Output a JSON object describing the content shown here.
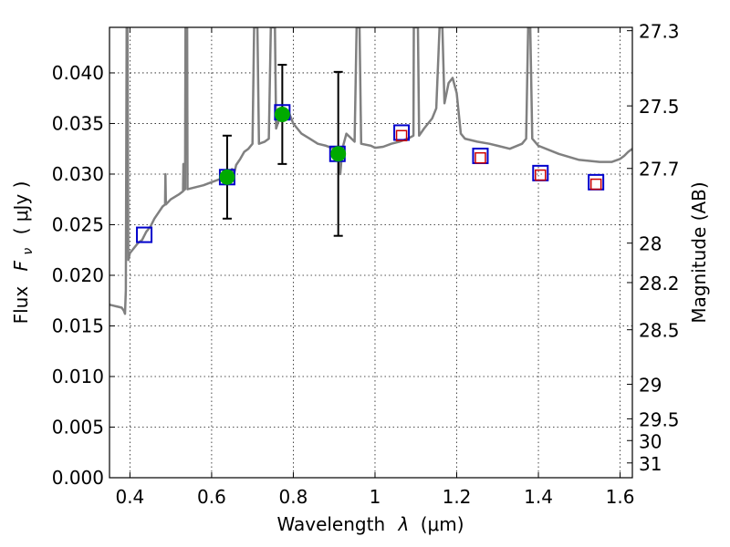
{
  "chart_data": {
    "type": "scatter",
    "xlabel": "Wavelength",
    "xlabel_symbol": "λ",
    "xlabel_unit": "(μm)",
    "ylabel_left": "Flux",
    "ylabel_left_symbol": "F",
    "ylabel_left_subscript": "ν",
    "ylabel_left_unit": "( μJy )",
    "ylabel_right": "Magnitude (AB)",
    "xlim": [
      0.35,
      1.63
    ],
    "ylim": [
      0.0,
      0.0445
    ],
    "x_ticks": [
      0.4,
      0.6,
      0.8,
      1.0,
      1.2,
      1.4,
      1.6
    ],
    "x_tick_labels": [
      "0.4",
      "0.6",
      "0.8",
      "1",
      "1.2",
      "1.4",
      "1.6"
    ],
    "y_ticks": [
      0.0,
      0.005,
      0.01,
      0.015,
      0.02,
      0.025,
      0.03,
      0.035,
      0.04
    ],
    "y_tick_labels": [
      "0.000",
      "0.005",
      "0.010",
      "0.015",
      "0.020",
      "0.025",
      "0.030",
      "0.035",
      "0.040"
    ],
    "right_ticks": [
      {
        "label": "27.3",
        "flux": 0.04417
      },
      {
        "label": "27.5",
        "flux": 0.03674
      },
      {
        "label": "27.7",
        "flux": 0.03056
      },
      {
        "label": "28",
        "flux": 0.02318
      },
      {
        "label": "28.2",
        "flux": 0.01928
      },
      {
        "label": "28.5",
        "flux": 0.01462
      },
      {
        "label": "29",
        "flux": 0.00923
      },
      {
        "label": "29.5",
        "flux": 0.00582
      },
      {
        "label": "30",
        "flux": 0.00367
      },
      {
        "label": "31",
        "flux": 0.00146
      }
    ],
    "grid": true,
    "series": [
      {
        "name": "model_sed",
        "color": "#808080",
        "points": [
          [
            0.35,
            0.0171
          ],
          [
            0.36,
            0.017
          ],
          [
            0.37,
            0.0169
          ],
          [
            0.38,
            0.0168
          ],
          [
            0.385,
            0.0165
          ],
          [
            0.388,
            0.0162
          ],
          [
            0.39,
            0.0185
          ],
          [
            0.392,
            0.0445
          ],
          [
            0.394,
            0.0445
          ],
          [
            0.396,
            0.0215
          ],
          [
            0.4,
            0.0222
          ],
          [
            0.41,
            0.0227
          ],
          [
            0.42,
            0.0232
          ],
          [
            0.43,
            0.0235
          ],
          [
            0.44,
            0.0243
          ],
          [
            0.45,
            0.0248
          ],
          [
            0.46,
            0.0256
          ],
          [
            0.47,
            0.0262
          ],
          [
            0.48,
            0.0268
          ],
          [
            0.486,
            0.027
          ],
          [
            0.487,
            0.03
          ],
          [
            0.488,
            0.027
          ],
          [
            0.5,
            0.0275
          ],
          [
            0.52,
            0.028
          ],
          [
            0.53,
            0.0283
          ],
          [
            0.531,
            0.031
          ],
          [
            0.532,
            0.0284
          ],
          [
            0.535,
            0.0285
          ],
          [
            0.536,
            0.0445
          ],
          [
            0.54,
            0.0445
          ],
          [
            0.541,
            0.0285
          ],
          [
            0.56,
            0.0287
          ],
          [
            0.58,
            0.0289
          ],
          [
            0.6,
            0.0292
          ],
          [
            0.62,
            0.0295
          ],
          [
            0.63,
            0.0297
          ],
          [
            0.64,
            0.03
          ],
          [
            0.65,
            0.0305
          ],
          [
            0.655,
            0.03
          ],
          [
            0.66,
            0.0309
          ],
          [
            0.67,
            0.0315
          ],
          [
            0.68,
            0.0322
          ],
          [
            0.69,
            0.0325
          ],
          [
            0.7,
            0.033
          ],
          [
            0.704,
            0.0445
          ],
          [
            0.712,
            0.0445
          ],
          [
            0.716,
            0.033
          ],
          [
            0.73,
            0.0332
          ],
          [
            0.74,
            0.0335
          ],
          [
            0.745,
            0.0445
          ],
          [
            0.755,
            0.0445
          ],
          [
            0.758,
            0.0345
          ],
          [
            0.77,
            0.036
          ],
          [
            0.78,
            0.0362
          ],
          [
            0.79,
            0.036
          ],
          [
            0.8,
            0.035
          ],
          [
            0.82,
            0.034
          ],
          [
            0.84,
            0.0335
          ],
          [
            0.86,
            0.033
          ],
          [
            0.88,
            0.0328
          ],
          [
            0.9,
            0.0325
          ],
          [
            0.91,
            0.032
          ],
          [
            0.915,
            0.03
          ],
          [
            0.92,
            0.0325
          ],
          [
            0.93,
            0.034
          ],
          [
            0.95,
            0.0332
          ],
          [
            0.955,
            0.0445
          ],
          [
            0.962,
            0.0445
          ],
          [
            0.966,
            0.033
          ],
          [
            0.99,
            0.0328
          ],
          [
            1.0,
            0.0326
          ],
          [
            1.02,
            0.0327
          ],
          [
            1.04,
            0.033
          ],
          [
            1.06,
            0.0332
          ],
          [
            1.08,
            0.0335
          ],
          [
            1.094,
            0.0338
          ],
          [
            1.095,
            0.0445
          ],
          [
            1.105,
            0.0445
          ],
          [
            1.108,
            0.0338
          ],
          [
            1.12,
            0.0345
          ],
          [
            1.14,
            0.0355
          ],
          [
            1.15,
            0.0365
          ],
          [
            1.158,
            0.0445
          ],
          [
            1.165,
            0.0445
          ],
          [
            1.17,
            0.037
          ],
          [
            1.18,
            0.039
          ],
          [
            1.19,
            0.0395
          ],
          [
            1.2,
            0.038
          ],
          [
            1.21,
            0.034
          ],
          [
            1.22,
            0.0335
          ],
          [
            1.25,
            0.0332
          ],
          [
            1.28,
            0.033
          ],
          [
            1.3,
            0.0328
          ],
          [
            1.33,
            0.0325
          ],
          [
            1.36,
            0.033
          ],
          [
            1.37,
            0.0335
          ],
          [
            1.375,
            0.0445
          ],
          [
            1.38,
            0.0445
          ],
          [
            1.385,
            0.0335
          ],
          [
            1.4,
            0.0328
          ],
          [
            1.45,
            0.032
          ],
          [
            1.5,
            0.0314
          ],
          [
            1.55,
            0.0312
          ],
          [
            1.58,
            0.0312
          ],
          [
            1.6,
            0.0315
          ],
          [
            1.61,
            0.0318
          ],
          [
            1.62,
            0.0322
          ],
          [
            1.63,
            0.0325
          ]
        ]
      }
    ],
    "observed": [
      {
        "x": 0.638,
        "y": 0.0297,
        "err": 0.0041
      },
      {
        "x": 0.773,
        "y": 0.0359,
        "err": 0.0049
      },
      {
        "x": 0.91,
        "y": 0.032,
        "err": 0.0081
      }
    ],
    "model_bands": [
      {
        "x": 0.435,
        "y": 0.024
      },
      {
        "x": 0.638,
        "y": 0.0297
      },
      {
        "x": 0.773,
        "y": 0.0361
      },
      {
        "x": 0.908,
        "y": 0.032
      },
      {
        "x": 1.065,
        "y": 0.0341
      },
      {
        "x": 1.258,
        "y": 0.0318
      },
      {
        "x": 1.405,
        "y": 0.0301
      },
      {
        "x": 1.541,
        "y": 0.0292
      }
    ],
    "synthetic": [
      {
        "x": 1.065,
        "y": 0.0338
      },
      {
        "x": 1.258,
        "y": 0.0316
      },
      {
        "x": 1.405,
        "y": 0.0299
      },
      {
        "x": 1.541,
        "y": 0.029
      }
    ],
    "colors": {
      "sed": "#808080",
      "observed": "#00aa00",
      "model_box": "#0000cc",
      "synthetic_box": "#cc0000",
      "errorbar": "#000000"
    }
  }
}
